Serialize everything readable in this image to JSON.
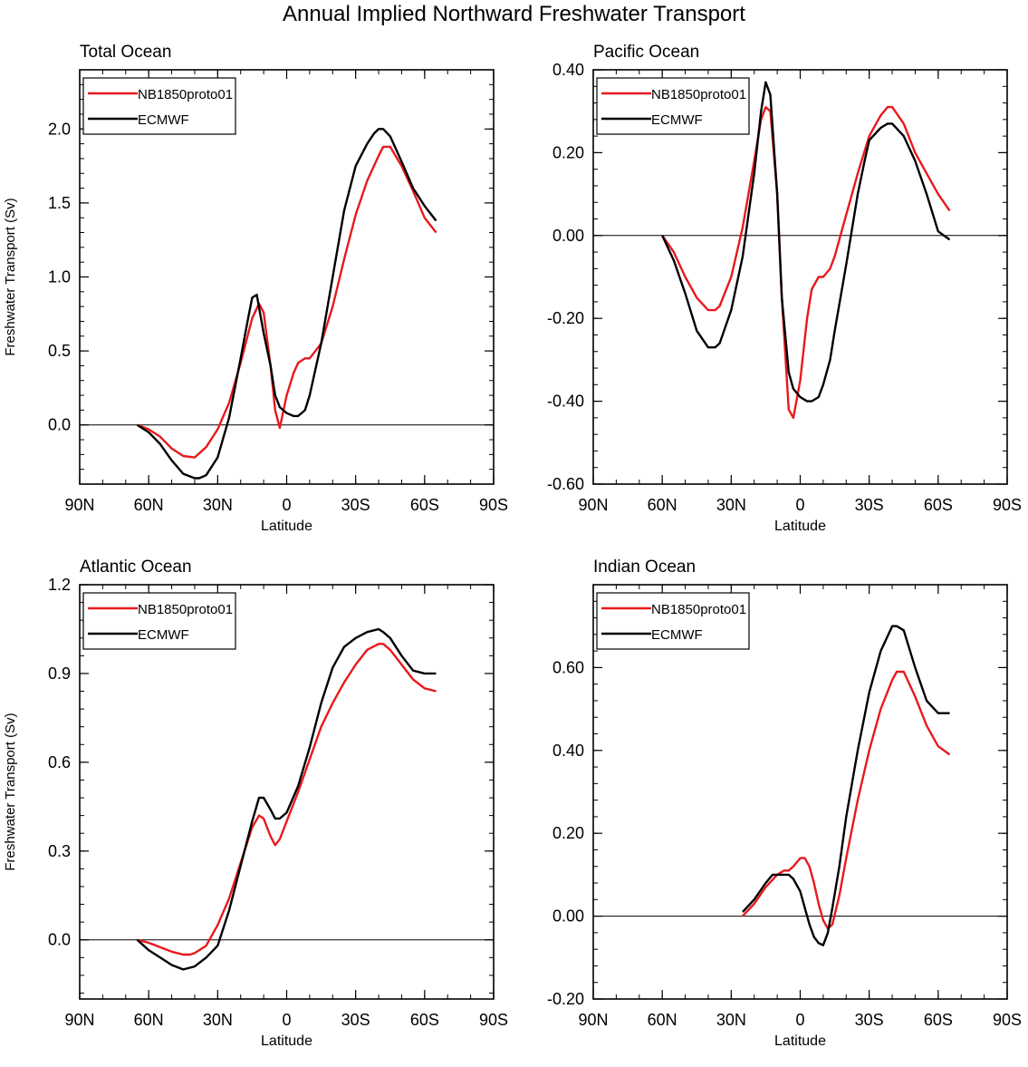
{
  "title": "Annual Implied Northward Freshwater Transport",
  "colors": {
    "model": "#e8191c",
    "obs": "#000000"
  },
  "chart_data": [
    {
      "type": "line",
      "title": "Total Ocean",
      "xlabel": "Latitude",
      "ylabel": "Freshwater Transport (Sv)",
      "xlim": [
        -90,
        90
      ],
      "ylim": [
        -0.4,
        2.4
      ],
      "xticks": [
        -90,
        -60,
        -30,
        0,
        30,
        60,
        90
      ],
      "xtick_labels": [
        "90N",
        "60N",
        "30N",
        "0",
        "30S",
        "60S",
        "90S"
      ],
      "yticks": [
        0,
        0.5,
        1.0,
        1.5,
        2.0
      ],
      "ytick_labels": [
        "0.0",
        "0.5",
        "1.0",
        "1.5",
        "2.0"
      ],
      "ylabels_side": "left",
      "legend": [
        "NB1850proto01",
        "ECMWF"
      ],
      "series": [
        {
          "name": "NB1850proto01",
          "x": [
            -65,
            -60,
            -55,
            -50,
            -45,
            -40,
            -35,
            -30,
            -25,
            -20,
            -15,
            -12,
            -10,
            -7,
            -5,
            -3,
            0,
            3,
            5,
            8,
            10,
            15,
            20,
            25,
            30,
            35,
            40,
            42,
            45,
            50,
            55,
            60,
            65
          ],
          "y": [
            0,
            -0.03,
            -0.08,
            -0.16,
            -0.21,
            -0.22,
            -0.15,
            -0.03,
            0.15,
            0.42,
            0.72,
            0.82,
            0.76,
            0.4,
            0.1,
            -0.02,
            0.2,
            0.35,
            0.42,
            0.45,
            0.45,
            0.55,
            0.8,
            1.12,
            1.42,
            1.65,
            1.82,
            1.88,
            1.88,
            1.75,
            1.58,
            1.4,
            1.3
          ]
        },
        {
          "name": "ECMWF",
          "x": [
            -65,
            -60,
            -55,
            -50,
            -45,
            -40,
            -38,
            -35,
            -30,
            -25,
            -20,
            -17,
            -15,
            -13,
            -10,
            -7,
            -5,
            -3,
            0,
            3,
            5,
            8,
            10,
            15,
            20,
            25,
            30,
            35,
            38,
            40,
            42,
            45,
            50,
            55,
            60,
            65
          ],
          "y": [
            0,
            -0.05,
            -0.13,
            -0.24,
            -0.33,
            -0.36,
            -0.36,
            -0.34,
            -0.22,
            0.05,
            0.45,
            0.7,
            0.86,
            0.88,
            0.62,
            0.4,
            0.2,
            0.12,
            0.08,
            0.06,
            0.06,
            0.1,
            0.2,
            0.55,
            1.0,
            1.45,
            1.75,
            1.9,
            1.97,
            2.0,
            2.0,
            1.95,
            1.78,
            1.6,
            1.48,
            1.38
          ]
        }
      ]
    },
    {
      "type": "line",
      "title": "Pacific Ocean",
      "xlabel": "Latitude",
      "ylabel": "",
      "xlim": [
        -90,
        90
      ],
      "ylim": [
        -0.6,
        0.4
      ],
      "xticks": [
        -90,
        -60,
        -30,
        0,
        30,
        60,
        90
      ],
      "xtick_labels": [
        "90N",
        "60N",
        "30N",
        "0",
        "30S",
        "60S",
        "90S"
      ],
      "yticks": [
        -0.6,
        -0.4,
        -0.2,
        0,
        0.2,
        0.4
      ],
      "ytick_labels": [
        "-0.60",
        "-0.40",
        "-0.20",
        "0.00",
        "0.20",
        "0.40"
      ],
      "ylabels_side": "left",
      "legend": [
        "NB1850proto01",
        "ECMWF"
      ],
      "series": [
        {
          "name": "NB1850proto01",
          "x": [
            -60,
            -55,
            -50,
            -45,
            -40,
            -37,
            -35,
            -30,
            -25,
            -20,
            -17,
            -15,
            -13,
            -10,
            -8,
            -5,
            -3,
            0,
            3,
            5,
            8,
            10,
            13,
            15,
            20,
            25,
            30,
            35,
            38,
            40,
            45,
            50,
            55,
            60,
            65
          ],
          "y": [
            0,
            -0.04,
            -0.1,
            -0.15,
            -0.18,
            -0.18,
            -0.17,
            -0.1,
            0.02,
            0.18,
            0.28,
            0.31,
            0.3,
            0.1,
            -0.15,
            -0.42,
            -0.44,
            -0.35,
            -0.2,
            -0.13,
            -0.1,
            -0.1,
            -0.08,
            -0.05,
            0.05,
            0.15,
            0.24,
            0.29,
            0.31,
            0.31,
            0.27,
            0.2,
            0.15,
            0.1,
            0.06
          ]
        },
        {
          "name": "ECMWF",
          "x": [
            -60,
            -55,
            -50,
            -45,
            -40,
            -37,
            -35,
            -30,
            -25,
            -20,
            -17,
            -15,
            -13,
            -10,
            -8,
            -5,
            -3,
            0,
            3,
            5,
            8,
            10,
            13,
            15,
            20,
            25,
            28,
            30,
            35,
            38,
            40,
            45,
            50,
            55,
            60,
            65
          ],
          "y": [
            0,
            -0.06,
            -0.14,
            -0.23,
            -0.27,
            -0.27,
            -0.26,
            -0.18,
            -0.05,
            0.15,
            0.3,
            0.37,
            0.34,
            0.1,
            -0.15,
            -0.33,
            -0.37,
            -0.39,
            -0.4,
            -0.4,
            -0.39,
            -0.36,
            -0.3,
            -0.23,
            -0.07,
            0.1,
            0.18,
            0.23,
            0.26,
            0.27,
            0.27,
            0.24,
            0.18,
            0.1,
            0.01,
            -0.01
          ]
        }
      ]
    },
    {
      "type": "line",
      "title": "Atlantic Ocean",
      "xlabel": "Latitude",
      "ylabel": "Freshwater Transport (Sv)",
      "xlim": [
        -90,
        90
      ],
      "ylim": [
        -0.2,
        1.2
      ],
      "xticks": [
        -90,
        -60,
        -30,
        0,
        30,
        60,
        90
      ],
      "xtick_labels": [
        "90N",
        "60N",
        "30N",
        "0",
        "30S",
        "60S",
        "90S"
      ],
      "yticks": [
        0,
        0.3,
        0.6,
        0.9,
        1.2
      ],
      "ytick_labels": [
        "0.0",
        "0.3",
        "0.6",
        "0.9",
        "1.2"
      ],
      "ylabels_side": "left",
      "legend": [
        "NB1850proto01",
        "ECMWF"
      ],
      "series": [
        {
          "name": "NB1850proto01",
          "x": [
            -65,
            -60,
            -55,
            -50,
            -45,
            -42,
            -40,
            -35,
            -30,
            -25,
            -20,
            -15,
            -12,
            -10,
            -7,
            -5,
            -3,
            0,
            5,
            10,
            15,
            20,
            25,
            30,
            35,
            40,
            42,
            45,
            50,
            55,
            60,
            65
          ],
          "y": [
            0,
            -0.01,
            -0.025,
            -0.04,
            -0.05,
            -0.05,
            -0.045,
            -0.02,
            0.05,
            0.14,
            0.26,
            0.38,
            0.42,
            0.41,
            0.35,
            0.32,
            0.34,
            0.4,
            0.5,
            0.61,
            0.72,
            0.8,
            0.87,
            0.93,
            0.98,
            1.0,
            1.0,
            0.98,
            0.93,
            0.88,
            0.85,
            0.84
          ]
        },
        {
          "name": "ECMWF",
          "x": [
            -65,
            -60,
            -55,
            -50,
            -45,
            -40,
            -35,
            -30,
            -25,
            -20,
            -15,
            -12,
            -10,
            -7,
            -5,
            -3,
            0,
            5,
            10,
            15,
            20,
            25,
            30,
            35,
            40,
            42,
            45,
            50,
            55,
            60,
            65
          ],
          "y": [
            0,
            -0.035,
            -0.06,
            -0.085,
            -0.1,
            -0.09,
            -0.06,
            -0.02,
            0.1,
            0.25,
            0.4,
            0.48,
            0.48,
            0.44,
            0.41,
            0.41,
            0.43,
            0.52,
            0.65,
            0.8,
            0.92,
            0.99,
            1.02,
            1.04,
            1.05,
            1.04,
            1.02,
            0.96,
            0.91,
            0.9,
            0.9
          ]
        }
      ]
    },
    {
      "type": "line",
      "title": "Indian Ocean",
      "xlabel": "Latitude",
      "ylabel": "",
      "xlim": [
        -90,
        90
      ],
      "ylim": [
        -0.2,
        0.8
      ],
      "xticks": [
        -90,
        -60,
        -30,
        0,
        30,
        60,
        90
      ],
      "xtick_labels": [
        "90N",
        "60N",
        "30N",
        "0",
        "30S",
        "60S",
        "90S"
      ],
      "yticks": [
        -0.2,
        0,
        0.2,
        0.4,
        0.6
      ],
      "ytick_labels": [
        "-0.20",
        "0.00",
        "0.20",
        "0.40",
        "0.60"
      ],
      "ylabels_side": "left",
      "legend": [
        "NB1850proto01",
        "ECMWF"
      ],
      "series": [
        {
          "name": "NB1850proto01",
          "x": [
            -25,
            -20,
            -15,
            -10,
            -7,
            -5,
            -3,
            0,
            2,
            4,
            6,
            8,
            10,
            12,
            14,
            17,
            20,
            25,
            30,
            35,
            40,
            42,
            45,
            50,
            55,
            60,
            65
          ],
          "y": [
            0,
            0.03,
            0.07,
            0.1,
            0.11,
            0.11,
            0.12,
            0.14,
            0.14,
            0.12,
            0.08,
            0.03,
            -0.01,
            -0.03,
            -0.02,
            0.05,
            0.14,
            0.28,
            0.4,
            0.5,
            0.57,
            0.59,
            0.59,
            0.53,
            0.46,
            0.41,
            0.39
          ]
        },
        {
          "name": "ECMWF",
          "x": [
            -25,
            -20,
            -15,
            -12,
            -10,
            -8,
            -5,
            -3,
            0,
            2,
            4,
            6,
            8,
            10,
            12,
            14,
            17,
            20,
            25,
            30,
            35,
            40,
            42,
            45,
            50,
            55,
            60,
            65
          ],
          "y": [
            0.01,
            0.04,
            0.08,
            0.1,
            0.1,
            0.1,
            0.1,
            0.09,
            0.06,
            0.02,
            -0.02,
            -0.05,
            -0.065,
            -0.07,
            -0.04,
            0.02,
            0.12,
            0.24,
            0.4,
            0.54,
            0.64,
            0.7,
            0.7,
            0.69,
            0.6,
            0.52,
            0.49,
            0.49
          ]
        }
      ]
    }
  ]
}
